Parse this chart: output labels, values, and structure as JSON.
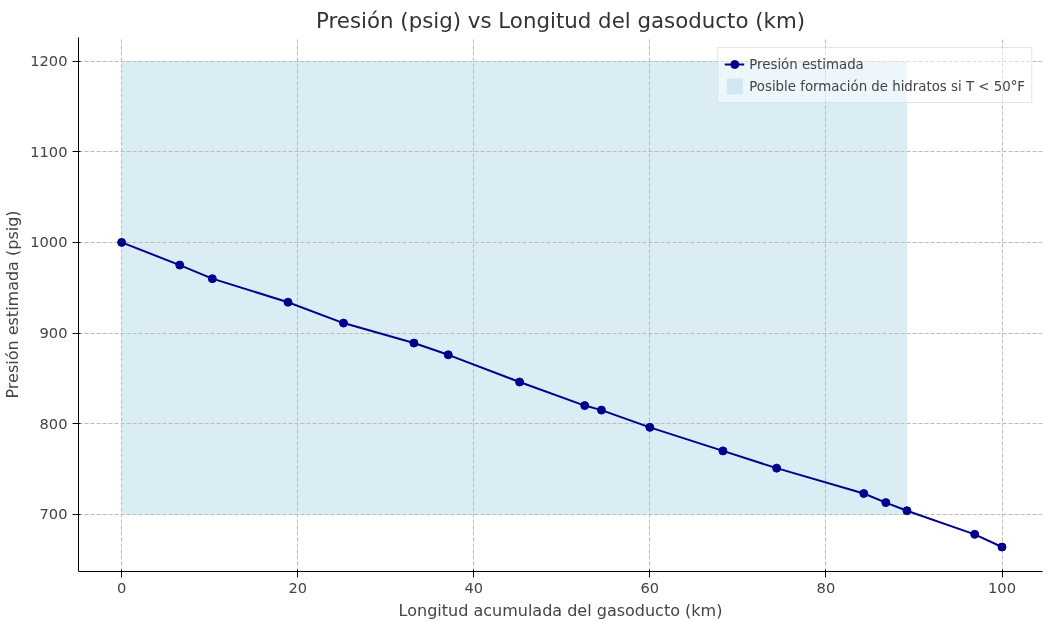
{
  "chart_data": {
    "type": "line",
    "title": "Presión (psig) vs Longitud del gasoducto (km)",
    "xlabel": "Longitud acumulada del gasoducto (km)",
    "ylabel": "Presión estimada (psig)",
    "x": [
      0,
      6.6,
      10.3,
      18.9,
      25.2,
      33.2,
      37.1,
      45.2,
      52.6,
      54.5,
      60,
      68.3,
      74.4,
      84.3,
      86.8,
      89.2,
      96.9,
      100
    ],
    "series": [
      {
        "name": "Presión estimada",
        "color": "#00008b",
        "values": [
          1000,
          975,
          960,
          934,
          911,
          889,
          876,
          846,
          820,
          815,
          796,
          770,
          751,
          723,
          713,
          704,
          678,
          664
        ]
      },
      {
        "type": "line",
        "marker": "none",
        "name": "Posible formación de hidratos si T < 50°F",
        "color": "#add8e6",
        "x": [
          0,
          89.2
        ],
        "values": [
          null,
          null
        ],
        "lower": [
          700,
          700
        ],
        "upper": [
          1200,
          1200
        ]
      }
    ],
    "xlim": [
      -4.9,
      104.6
    ],
    "ylim": [
      637,
      1226
    ],
    "xticks": [
      0,
      20,
      40,
      60,
      80,
      100
    ],
    "yticks": [
      700,
      800,
      900,
      1000,
      1100,
      1200
    ],
    "grid": true,
    "legend": "top right",
    "marker": "circle",
    "line_style": "solid"
  }
}
